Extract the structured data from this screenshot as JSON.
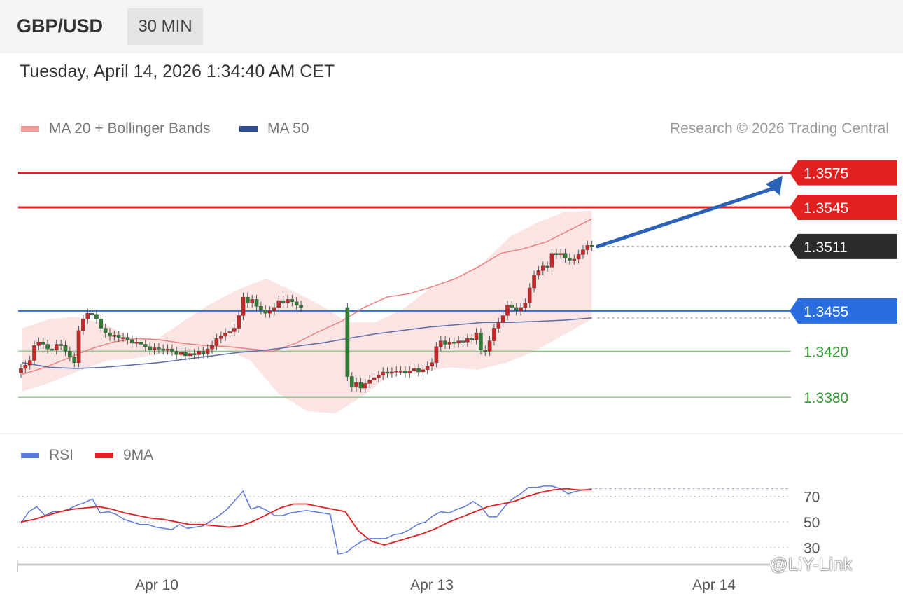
{
  "header": {
    "pair": "GBP/USD",
    "timeframe": "30 MIN"
  },
  "date": "Tuesday, April 14, 2026 1:34:40 AM CET",
  "legend": {
    "ma20": "MA 20 + Bollinger Bands",
    "ma50": "MA 50",
    "credit": "Research © 2026 Trading Central",
    "colors": {
      "ma20": "#f29a9a",
      "ma50": "#2f4f8c"
    }
  },
  "rsi_legend": {
    "rsi": "RSI",
    "ma9": "9MA",
    "colors": {
      "rsi": "#5b7be0",
      "ma9": "#e02020"
    }
  },
  "watermark": "@LiY-Link",
  "chart_data": [
    {
      "type": "candlestick",
      "title": "GBP/USD 30 MIN",
      "x_ticks": [
        "Apr 10",
        "Apr 13",
        "Apr 14"
      ],
      "ylim": [
        1.336,
        1.359
      ],
      "levels": [
        {
          "value": 1.3575,
          "label": "1.3575",
          "kind": "resistance",
          "color": "#e32020"
        },
        {
          "value": 1.3545,
          "label": "1.3545",
          "kind": "resistance",
          "color": "#e32020"
        },
        {
          "value": 1.3511,
          "label": "1.3511",
          "kind": "last",
          "color": "#2b2b2b"
        },
        {
          "value": 1.3455,
          "label": "1.3455",
          "kind": "pivot",
          "color": "#2a6de0"
        },
        {
          "value": 1.342,
          "label": "1.3420",
          "kind": "support",
          "color": "#2e9a2e"
        },
        {
          "value": 1.338,
          "label": "1.3380",
          "kind": "support",
          "color": "#2e9a2e"
        }
      ],
      "close_series": [
        1.3405,
        1.3408,
        1.3412,
        1.3425,
        1.3428,
        1.3426,
        1.3422,
        1.3421,
        1.3426,
        1.3425,
        1.342,
        1.3415,
        1.341,
        1.3438,
        1.3448,
        1.3453,
        1.3452,
        1.3448,
        1.344,
        1.3436,
        1.3433,
        1.3434,
        1.3432,
        1.3432,
        1.343,
        1.3427,
        1.3428,
        1.3426,
        1.3424,
        1.3421,
        1.3423,
        1.3422,
        1.3421,
        1.3422,
        1.342,
        1.3417,
        1.3419,
        1.3416,
        1.3418,
        1.3417,
        1.342,
        1.3418,
        1.3422,
        1.3425,
        1.3431,
        1.3433,
        1.3436,
        1.3437,
        1.344,
        1.3451,
        1.3467,
        1.3462,
        1.3465,
        1.3459,
        1.3456,
        1.3453,
        1.3455,
        1.3458,
        1.3464,
        1.3462,
        1.3465,
        1.3463,
        1.346,
        1.3458,
        1.3398,
        1.3389,
        1.3393,
        1.3388,
        1.3392,
        1.3395,
        1.3397,
        1.3399,
        1.3402,
        1.3401,
        1.3402,
        1.3403,
        1.3403,
        1.3401,
        1.3403,
        1.3405,
        1.3402,
        1.3404,
        1.3407,
        1.341,
        1.3424,
        1.3429,
        1.3426,
        1.3428,
        1.3427,
        1.3429,
        1.3428,
        1.3431,
        1.343,
        1.3436,
        1.3421,
        1.342,
        1.3429,
        1.344,
        1.3445,
        1.3451,
        1.346,
        1.3458,
        1.3455,
        1.3458,
        1.3462,
        1.3475,
        1.3486,
        1.349,
        1.3494,
        1.3493,
        1.3505,
        1.3504,
        1.3505,
        1.3501,
        1.3499,
        1.35,
        1.3504,
        1.3508,
        1.3512,
        1.3511
      ],
      "ma20_series": [
        1.34,
        1.3406,
        1.3414,
        1.3422,
        1.3428,
        1.3431,
        1.343,
        1.3427,
        1.3425,
        1.3424,
        1.3422,
        1.342,
        1.3427,
        1.3437,
        1.3446,
        1.3458,
        1.3467,
        1.347,
        1.3476,
        1.3483,
        1.3493,
        1.3505,
        1.3509,
        1.3515,
        1.3525,
        1.3535
      ],
      "ma50_series": [
        1.341,
        1.3406,
        1.3405,
        1.3406,
        1.3408,
        1.341,
        1.3413,
        1.3416,
        1.3419,
        1.3421,
        1.3424,
        1.3427,
        1.3431,
        1.3435,
        1.3438,
        1.3441,
        1.3443,
        1.3445,
        1.3445,
        1.3446,
        1.3447,
        1.3449
      ],
      "bollinger_upper_series": [
        1.344,
        1.3448,
        1.345,
        1.3444,
        1.3432,
        1.3431,
        1.3447,
        1.3462,
        1.3474,
        1.3483,
        1.3472,
        1.346,
        1.3445,
        1.3445,
        1.3456,
        1.3474,
        1.3484,
        1.3497,
        1.352,
        1.3532,
        1.3541,
        1.3542
      ],
      "bollinger_lower_series": [
        1.3385,
        1.3393,
        1.3403,
        1.3412,
        1.3414,
        1.3418,
        1.3415,
        1.3423,
        1.3412,
        1.3383,
        1.3368,
        1.3366,
        1.3382,
        1.3401,
        1.3402,
        1.3406,
        1.3404,
        1.341,
        1.342,
        1.3434,
        1.3448
      ],
      "forecast_arrow": {
        "from": 1.3511,
        "to": 1.3575
      }
    },
    {
      "type": "line",
      "title": "RSI",
      "yticks": [
        30,
        50,
        70
      ],
      "ylim": [
        20,
        90
      ],
      "series": [
        {
          "name": "RSI",
          "values": [
            49,
            58,
            62,
            55,
            58,
            58,
            60,
            63,
            65,
            68,
            57,
            58,
            56,
            52,
            50,
            48,
            48,
            46,
            45,
            44,
            48,
            45,
            46,
            47,
            51,
            55,
            60,
            67,
            74,
            60,
            62,
            59,
            55,
            55,
            57,
            58,
            59,
            58,
            57,
            56,
            25,
            26,
            31,
            35,
            37,
            37,
            37,
            40,
            41,
            44,
            48,
            50,
            55,
            58,
            57,
            60,
            62,
            66,
            62,
            54,
            54,
            62,
            68,
            72,
            77,
            77,
            78,
            78,
            76,
            72,
            74,
            75,
            76
          ]
        },
        {
          "name": "9MA",
          "values": [
            50,
            52,
            55,
            58,
            60,
            61,
            62,
            60,
            57,
            55,
            53,
            52,
            50,
            48,
            48,
            47,
            46,
            47,
            51,
            56,
            61,
            64,
            64,
            62,
            60,
            58,
            43,
            35,
            32,
            35,
            38,
            41,
            45,
            50,
            54,
            58,
            62,
            64,
            66,
            70,
            73,
            75,
            76,
            75,
            75
          ]
        }
      ]
    }
  ]
}
